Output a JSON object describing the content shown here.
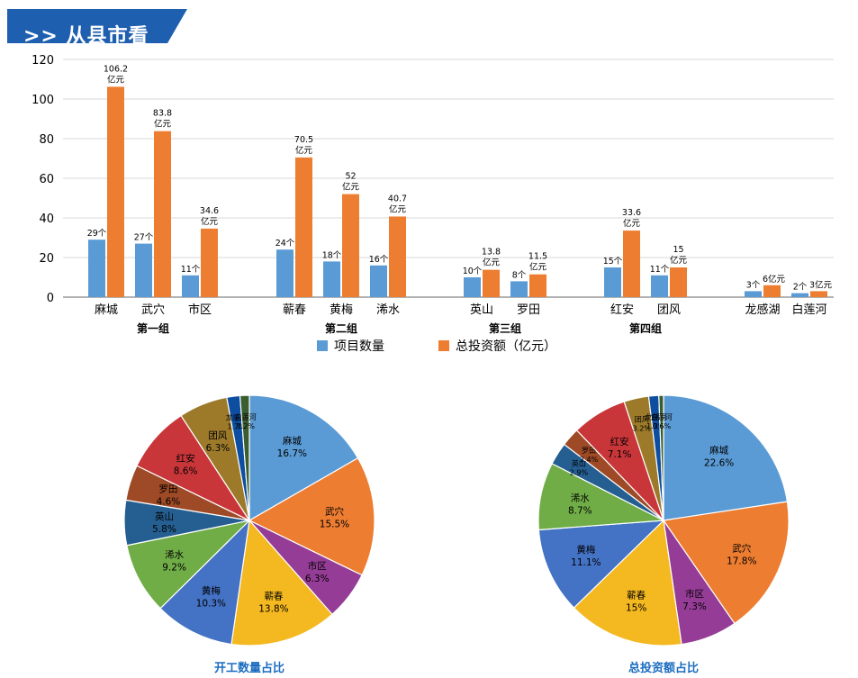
{
  "header": {
    "title": ">> 从县市看"
  },
  "colors": {
    "banner": "#1f5fb0",
    "series1": "#5b9bd5",
    "series2": "#ed7d31",
    "axis": "#888888",
    "grid": "#d9d9d9"
  },
  "chart_data": [
    {
      "type": "bar",
      "categories": [
        "麻城",
        "武穴",
        "市区",
        "蕲春",
        "黄梅",
        "浠水",
        "英山",
        "罗田",
        "红安",
        "团风",
        "龙感湖",
        "白莲河"
      ],
      "groups": [
        {
          "label": "第一组",
          "members": [
            "麻城",
            "武穴",
            "市区"
          ]
        },
        {
          "label": "第二组",
          "members": [
            "蕲春",
            "黄梅",
            "浠水"
          ]
        },
        {
          "label": "第三组",
          "members": [
            "英山",
            "罗田"
          ]
        },
        {
          "label": "第四组",
          "members": [
            "红安",
            "团风"
          ]
        },
        {
          "label": "",
          "members": [
            "龙感湖",
            "白莲河"
          ]
        }
      ],
      "series": [
        {
          "name": "项目数量",
          "values": [
            29,
            27,
            11,
            24,
            18,
            16,
            10,
            8,
            15,
            11,
            3,
            2
          ],
          "labels": [
            "29个",
            "27个",
            "11个",
            "24个",
            "18个",
            "16个",
            "10个",
            "8个",
            "15个",
            "11个",
            "3个",
            "2个"
          ]
        },
        {
          "name": "总投资额（亿元）",
          "values": [
            106.2,
            83.8,
            34.6,
            70.5,
            52,
            40.7,
            13.8,
            11.5,
            33.6,
            15,
            6,
            3
          ],
          "labels": [
            [
              "106.2",
              "亿元"
            ],
            [
              "83.8",
              "亿元"
            ],
            [
              "34.6",
              "亿元"
            ],
            [
              "70.5",
              "亿元"
            ],
            [
              "52",
              "亿元"
            ],
            [
              "40.7",
              "亿元"
            ],
            [
              "13.8",
              "亿元"
            ],
            [
              "11.5",
              "亿元"
            ],
            [
              "33.6",
              "亿元"
            ],
            [
              "15",
              "亿元"
            ],
            [
              "6亿元"
            ],
            [
              "3亿元"
            ]
          ]
        }
      ],
      "ylim": [
        0,
        120
      ],
      "yticks": [
        0,
        20,
        40,
        60,
        80,
        100,
        120
      ],
      "grid": true,
      "legend": "bottom-center"
    },
    {
      "type": "pie",
      "title": "开工数量占比",
      "slices": [
        {
          "name": "麻城",
          "value": 16.7,
          "label": "16.7%",
          "color": "#5b9bd5"
        },
        {
          "name": "武穴",
          "value": 15.5,
          "label": "15.5%",
          "color": "#ed7d31"
        },
        {
          "name": "市区",
          "value": 6.3,
          "label": "6.3%",
          "color": "#953d96"
        },
        {
          "name": "蕲春",
          "value": 13.8,
          "label": "13.8%",
          "color": "#f4b820"
        },
        {
          "name": "黄梅",
          "value": 10.3,
          "label": "10.3%",
          "color": "#4472c4"
        },
        {
          "name": "浠水",
          "value": 9.2,
          "label": "9.2%",
          "color": "#70ad47"
        },
        {
          "name": "英山",
          "value": 5.8,
          "label": "5.8%",
          "color": "#255e91"
        },
        {
          "name": "罗田",
          "value": 4.6,
          "label": "4.6%",
          "color": "#9e4a26"
        },
        {
          "name": "红安",
          "value": 8.6,
          "label": "8.6%",
          "color": "#c9363a"
        },
        {
          "name": "团风",
          "value": 6.3,
          "label": "6.3%",
          "color": "#9c7a2a"
        },
        {
          "name": "龙感湖",
          "value": 1.7,
          "label": "1.7%",
          "color": "#0d4ea0"
        },
        {
          "name": "白莲河",
          "value": 1.2,
          "label": "1.2%",
          "color": "#3b5e30"
        }
      ]
    },
    {
      "type": "pie",
      "title": "总投资额占比",
      "slices": [
        {
          "name": "麻城",
          "value": 22.6,
          "label": "22.6%",
          "color": "#5b9bd5"
        },
        {
          "name": "武穴",
          "value": 17.8,
          "label": "17.8%",
          "color": "#ed7d31"
        },
        {
          "name": "市区",
          "value": 7.3,
          "label": "7.3%",
          "color": "#953d96"
        },
        {
          "name": "蕲春",
          "value": 15,
          "label": "15%",
          "color": "#f4b820"
        },
        {
          "name": "黄梅",
          "value": 11.1,
          "label": "11.1%",
          "color": "#4472c4"
        },
        {
          "name": "浠水",
          "value": 8.7,
          "label": "8.7%",
          "color": "#70ad47"
        },
        {
          "name": "英山",
          "value": 2.9,
          "label": "2.9%",
          "color": "#255e91"
        },
        {
          "name": "罗田",
          "value": 2.4,
          "label": "2.4%",
          "color": "#9e4a26"
        },
        {
          "name": "红安",
          "value": 7.1,
          "label": "7.1%",
          "color": "#c9363a"
        },
        {
          "name": "团风",
          "value": 3.2,
          "label": "3.2%",
          "color": "#9c7a2a"
        },
        {
          "name": "龙感湖",
          "value": 1.3,
          "label": "1.3%",
          "color": "#0d4ea0"
        },
        {
          "name": "白莲河",
          "value": 0.6,
          "label": "0.6%",
          "color": "#3b5e30"
        }
      ]
    }
  ]
}
